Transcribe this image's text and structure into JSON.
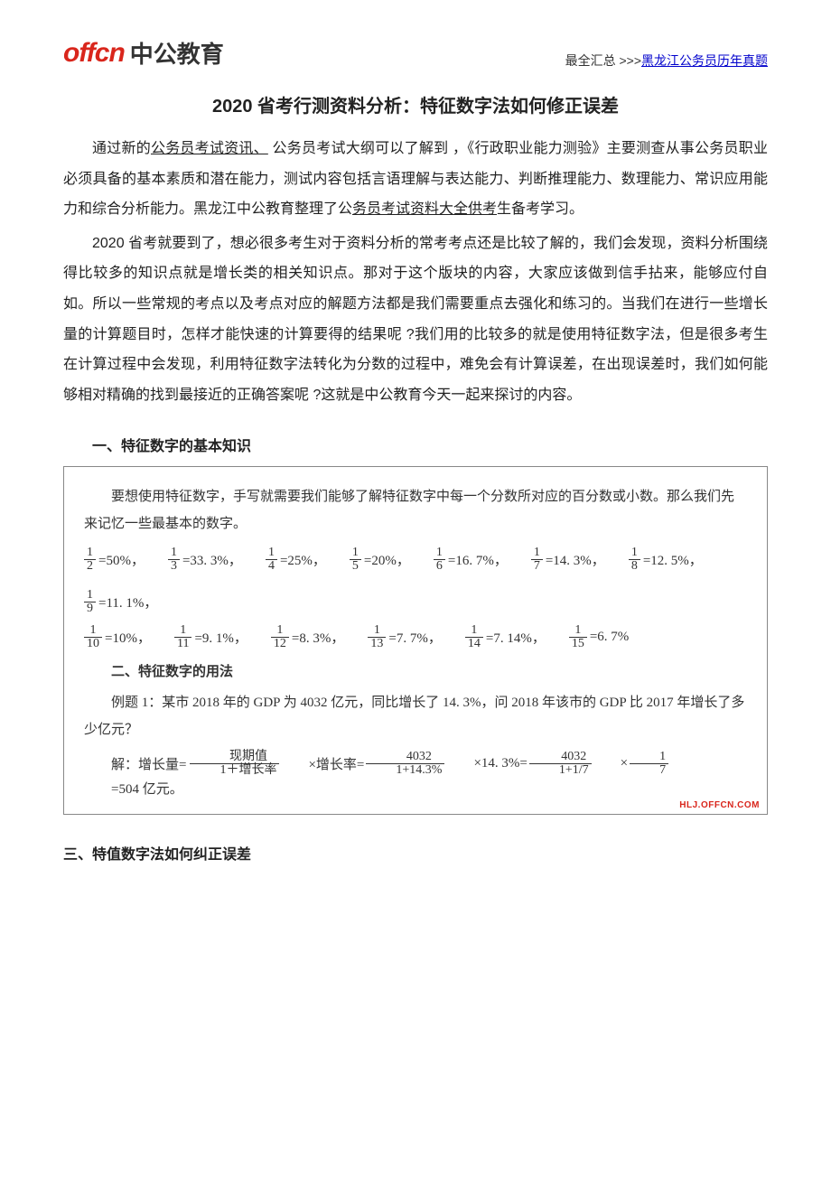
{
  "header": {
    "logo_latin": "offcn",
    "logo_cn": "中公教育",
    "top_right_prefix": "最全汇总 >>>",
    "top_right_link": "黑龙江公务员历年真题"
  },
  "title": "2020  省考行测资料分析：特征数字法如何修正误差",
  "paras": [
    {
      "text_parts": [
        {
          "t": "通过新的",
          "ul": false
        },
        {
          "t": "公务员考试资讯、",
          "ul": true
        },
        {
          "t": " 公务员考试大纲可以了解到 ，《行政职业能力测验》主要测查从事公务员职业必须具备的基本素质和潜在能力，测试内容包括言语理解与表达能力、判断推理能力、数理能力、常识应用能力和综合分析能力。黑龙江中公教育整理了公",
          "ul": false
        },
        {
          "t": "务员考试资料大全供考",
          "ul": true
        },
        {
          "t": "生备考学习。",
          "ul": false
        }
      ]
    },
    {
      "text_parts": [
        {
          "t": "2020 省考就要到了，想必很多考生对于资料分析的常考考点还是比较了解的，我们会发现，资料分析围绕得比较多的知识点就是增长类的相关知识点。那对于这个版块的内容，大家应该做到信手拈来，能够应付自如。所以一些常规的考点以及考点对应的解题方法都是我们需要重点去强化和练习的。当我们在进行一些增长量的计算题目时，怎样才能快速的计算要得的结果呢      ?我们用的比较多的就是使用特征数字法，但是很多考生在计算过程中会发现，利用特征数字法转化为分数的过程中，难免会有计算误差，在出现误差时，我们如何能够相对精确的找到最接近的正确答案呢    ?这就是中公教育今天一起来探讨的内容。",
          "ul": false
        }
      ]
    }
  ],
  "section1_heading": "一、特征数字的基本知识",
  "formula_intro": "要想使用特征数字，手写就需要我们能够了解特征数字中每一个分数所对应的百分数或小数。那么我们先来记忆一些最基本的数字。",
  "fracs_row1": [
    {
      "num": "1",
      "den": "2",
      "pct": "=50%，"
    },
    {
      "num": "1",
      "den": "3",
      "pct": "=33. 3%，"
    },
    {
      "num": "1",
      "den": "4",
      "pct": "=25%，"
    },
    {
      "num": "1",
      "den": "5",
      "pct": "=20%，"
    },
    {
      "num": "1",
      "den": "6",
      "pct": "=16. 7%，"
    },
    {
      "num": "1",
      "den": "7",
      "pct": "=14. 3%，"
    },
    {
      "num": "1",
      "den": "8",
      "pct": "=12. 5%，"
    },
    {
      "num": "1",
      "den": "9",
      "pct": "=11. 1%，"
    }
  ],
  "fracs_row2": [
    {
      "num": "1",
      "den": "10",
      "pct": "=10%，"
    },
    {
      "num": "1",
      "den": "11",
      "pct": "=9. 1%，"
    },
    {
      "num": "1",
      "den": "12",
      "pct": "=8. 3%，"
    },
    {
      "num": "1",
      "den": "13",
      "pct": "=7. 7%，"
    },
    {
      "num": "1",
      "den": "14",
      "pct": "=7. 14%，"
    },
    {
      "num": "1",
      "den": "15",
      "pct": "=6. 7%"
    }
  ],
  "section2_heading": "二、特征数字的用法",
  "example1": "例题 1：某市 2018 年的 GDP 为 4032 亿元，同比增长了 14. 3%，问 2018 年该市的 GDP 比 2017 年增长了多少亿元？",
  "solve": {
    "prefix": "解：增长量=",
    "f1_num": "现期值",
    "f1_den": "1＋增长率",
    "mid1": " ×增长率=",
    "f2_num": "4032",
    "f2_den": "1+14.3%",
    "mid2": " ×14. 3%=",
    "f3_num": "4032",
    "f3_den": "1+1/7",
    "mid3": " × ",
    "f4_num": "1",
    "f4_den": "7",
    "tail": " =504 亿元。"
  },
  "watermark": "HLJ.OFFCN.COM",
  "section3_heading": "三、特值数字法如何纠正误差",
  "colors": {
    "brand_red": "#d9261c",
    "link_blue": "#0000cc",
    "text": "#222222",
    "border": "#888888"
  }
}
